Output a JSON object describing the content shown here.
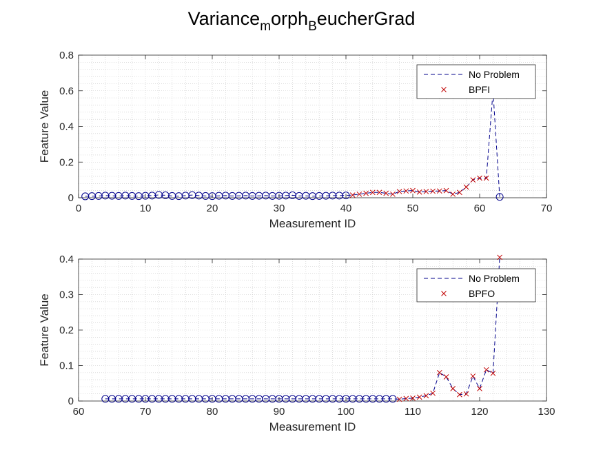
{
  "figure": {
    "title_parts": [
      "Variance",
      "m",
      "orph",
      "B",
      "eucherGrad"
    ]
  },
  "chart_data": [
    {
      "type": "line",
      "xlabel": "Measurement ID",
      "ylabel": "Feature Value",
      "xlim": [
        0,
        70
      ],
      "ylim": [
        0,
        0.8
      ],
      "xticks": [
        0,
        10,
        20,
        30,
        40,
        50,
        60,
        70
      ],
      "yticks": [
        0,
        0.2,
        0.4,
        0.6,
        0.8
      ],
      "xtick_labels": [
        "0",
        "10",
        "20",
        "30",
        "40",
        "50",
        "60",
        "70"
      ],
      "ytick_labels": [
        "0",
        "0.2",
        "0.4",
        "0.6",
        "0.8"
      ],
      "grid": "minor-dotted",
      "legend_position": "top-right",
      "series": [
        {
          "name": "No Problem",
          "style": "dashed-line",
          "color": "#00008B",
          "x": [
            1,
            2,
            3,
            4,
            5,
            6,
            7,
            8,
            9,
            10,
            11,
            12,
            13,
            14,
            15,
            16,
            17,
            18,
            19,
            20,
            21,
            22,
            23,
            24,
            25,
            26,
            27,
            28,
            29,
            30,
            31,
            32,
            33,
            34,
            35,
            36,
            37,
            38,
            39,
            40,
            41,
            42,
            43,
            44,
            45,
            46,
            47,
            48,
            49,
            50,
            51,
            52,
            53,
            54,
            55,
            56,
            57,
            58,
            59,
            60,
            61,
            62,
            63
          ],
          "values": [
            0.008,
            0.009,
            0.01,
            0.012,
            0.011,
            0.01,
            0.012,
            0.01,
            0.009,
            0.011,
            0.012,
            0.016,
            0.014,
            0.01,
            0.009,
            0.012,
            0.015,
            0.012,
            0.01,
            0.009,
            0.011,
            0.012,
            0.01,
            0.011,
            0.012,
            0.01,
            0.011,
            0.012,
            0.01,
            0.011,
            0.012,
            0.014,
            0.01,
            0.011,
            0.009,
            0.01,
            0.011,
            0.012,
            0.012,
            0.013,
            0.015,
            0.02,
            0.025,
            0.03,
            0.03,
            0.025,
            0.02,
            0.035,
            0.038,
            0.04,
            0.032,
            0.035,
            0.037,
            0.038,
            0.04,
            0.02,
            0.03,
            0.06,
            0.1,
            0.11,
            0.11,
            0.6,
            0.005
          ]
        },
        {
          "name": "",
          "style": "circle-markers",
          "color": "#00008B",
          "x": [
            1,
            2,
            3,
            4,
            5,
            6,
            7,
            8,
            9,
            10,
            11,
            12,
            13,
            14,
            15,
            16,
            17,
            18,
            19,
            20,
            21,
            22,
            23,
            24,
            25,
            26,
            27,
            28,
            29,
            30,
            31,
            32,
            33,
            34,
            35,
            36,
            37,
            38,
            39,
            40,
            63
          ],
          "values": [
            0.008,
            0.009,
            0.01,
            0.012,
            0.011,
            0.01,
            0.012,
            0.01,
            0.009,
            0.011,
            0.012,
            0.016,
            0.014,
            0.01,
            0.009,
            0.012,
            0.015,
            0.012,
            0.01,
            0.009,
            0.011,
            0.012,
            0.01,
            0.011,
            0.012,
            0.01,
            0.011,
            0.012,
            0.01,
            0.011,
            0.012,
            0.014,
            0.01,
            0.011,
            0.009,
            0.01,
            0.011,
            0.012,
            0.012,
            0.013,
            0.005
          ]
        },
        {
          "name": "BPFI",
          "style": "x-markers",
          "color": "#C00000",
          "x": [
            41,
            42,
            43,
            44,
            45,
            46,
            47,
            48,
            49,
            50,
            51,
            52,
            53,
            54,
            55,
            56,
            57,
            58,
            59,
            60,
            61
          ],
          "values": [
            0.015,
            0.02,
            0.025,
            0.03,
            0.03,
            0.025,
            0.02,
            0.035,
            0.038,
            0.04,
            0.032,
            0.035,
            0.037,
            0.038,
            0.04,
            0.02,
            0.03,
            0.06,
            0.1,
            0.11,
            0.11
          ]
        }
      ]
    },
    {
      "type": "line",
      "xlabel": "Measurement ID",
      "ylabel": "Feature Value",
      "xlim": [
        60,
        130
      ],
      "ylim": [
        0,
        0.4
      ],
      "xticks": [
        60,
        70,
        80,
        90,
        100,
        110,
        120,
        130
      ],
      "yticks": [
        0,
        0.1,
        0.2,
        0.3,
        0.4
      ],
      "xtick_labels": [
        "60",
        "70",
        "80",
        "90",
        "100",
        "110",
        "120",
        "130"
      ],
      "ytick_labels": [
        "0",
        "0.1",
        "0.2",
        "0.3",
        "0.4"
      ],
      "grid": "minor-dotted",
      "legend_position": "top-right",
      "series": [
        {
          "name": "No Problem",
          "style": "dashed-line",
          "color": "#00008B",
          "x": [
            64,
            65,
            66,
            67,
            68,
            69,
            70,
            71,
            72,
            73,
            74,
            75,
            76,
            77,
            78,
            79,
            80,
            81,
            82,
            83,
            84,
            85,
            86,
            87,
            88,
            89,
            90,
            91,
            92,
            93,
            94,
            95,
            96,
            97,
            98,
            99,
            100,
            101,
            102,
            103,
            104,
            105,
            106,
            107,
            108,
            109,
            110,
            111,
            112,
            113,
            114,
            115,
            116,
            117,
            118,
            119,
            120,
            121,
            122,
            123
          ],
          "values": [
            0.006,
            0.006,
            0.006,
            0.006,
            0.006,
            0.006,
            0.006,
            0.006,
            0.006,
            0.006,
            0.006,
            0.006,
            0.006,
            0.006,
            0.006,
            0.006,
            0.006,
            0.006,
            0.006,
            0.006,
            0.006,
            0.006,
            0.006,
            0.006,
            0.006,
            0.006,
            0.006,
            0.006,
            0.006,
            0.006,
            0.006,
            0.006,
            0.006,
            0.006,
            0.006,
            0.006,
            0.006,
            0.006,
            0.006,
            0.006,
            0.006,
            0.006,
            0.006,
            0.006,
            0.005,
            0.007,
            0.008,
            0.011,
            0.015,
            0.022,
            0.08,
            0.068,
            0.035,
            0.018,
            0.02,
            0.07,
            0.035,
            0.088,
            0.078,
            0.405
          ]
        },
        {
          "name": "",
          "style": "circle-markers",
          "color": "#00008B",
          "x": [
            64,
            65,
            66,
            67,
            68,
            69,
            70,
            71,
            72,
            73,
            74,
            75,
            76,
            77,
            78,
            79,
            80,
            81,
            82,
            83,
            84,
            85,
            86,
            87,
            88,
            89,
            90,
            91,
            92,
            93,
            94,
            95,
            96,
            97,
            98,
            99,
            100,
            101,
            102,
            103,
            104,
            105,
            106,
            107
          ],
          "values": [
            0.006,
            0.006,
            0.006,
            0.006,
            0.006,
            0.006,
            0.006,
            0.006,
            0.006,
            0.006,
            0.006,
            0.006,
            0.006,
            0.006,
            0.006,
            0.006,
            0.006,
            0.006,
            0.006,
            0.006,
            0.006,
            0.006,
            0.006,
            0.006,
            0.006,
            0.006,
            0.006,
            0.006,
            0.006,
            0.006,
            0.006,
            0.006,
            0.006,
            0.006,
            0.006,
            0.006,
            0.006,
            0.006,
            0.006,
            0.006,
            0.006,
            0.006,
            0.006,
            0.006
          ]
        },
        {
          "name": "BPFO",
          "style": "x-markers",
          "color": "#C00000",
          "x": [
            108,
            109,
            110,
            111,
            112,
            113,
            114,
            115,
            116,
            117,
            118,
            119,
            120,
            121,
            122,
            123
          ],
          "values": [
            0.005,
            0.007,
            0.008,
            0.011,
            0.015,
            0.022,
            0.08,
            0.068,
            0.035,
            0.018,
            0.02,
            0.07,
            0.035,
            0.088,
            0.078,
            0.405
          ]
        }
      ]
    }
  ]
}
